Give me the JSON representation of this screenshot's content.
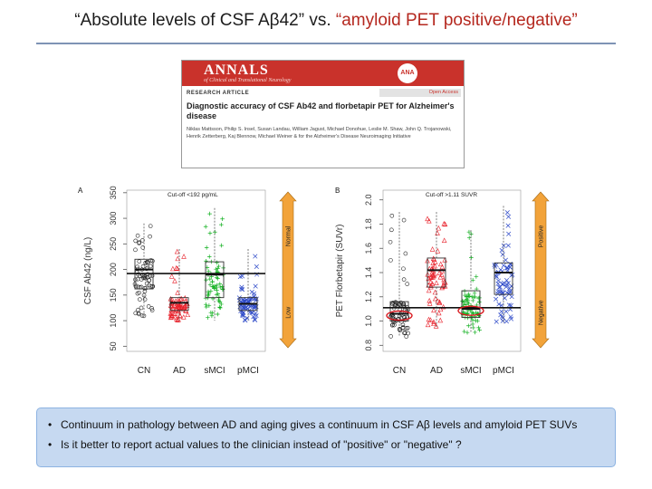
{
  "slide": {
    "title_part1": "“Absolute levels of CSF Aβ42” vs. ",
    "title_part2": "“amyloid PET positive/negative”",
    "bullets": [
      "Continuum in pathology between AD and aging gives a continuum in CSF Aβ levels and amyloid PET SUVs",
      "Is it better to report actual values to the clinician instead of \"positive\" or \"negative\" ?"
    ],
    "accent_color": "#b5281f",
    "bullet_box_color": "#c6d9f1"
  },
  "paper": {
    "journal": "ANNALS",
    "journal_sub": "of Clinical and Translational Neurology",
    "logo": "ANA",
    "open_access": "Open Access",
    "article_type": "RESEARCH ARTICLE",
    "title": "Diagnostic accuracy of CSF Ab42 and florbetapir PET for Alzheimer's disease",
    "authors": "Niklas Mattsson, Philip S. Insel, Susan Landau, William Jagust, Michael Donohue, Leslie M. Shaw, John Q. Trojanowski, Henrik Zetterberg, Kaj Blennow, Michael Weiner & for the Alzheimer's Disease Neuroimaging Initiative"
  },
  "chart_data": [
    {
      "panel": "A",
      "type": "scatter",
      "title": "Cut-off <192 pg/mL",
      "ylabel": "CSF Ab42 (ng/L)",
      "categories": [
        "CN",
        "AD",
        "sMCI",
        "pMCI"
      ],
      "ylim": [
        40,
        355
      ],
      "yticks": [
        50,
        100,
        150,
        200,
        250,
        300,
        350
      ],
      "cutoff": 192,
      "groups": [
        {
          "name": "CN",
          "marker": "circle",
          "color": "#222222",
          "median": 200,
          "q1": 162,
          "q3": 220,
          "min": 105,
          "max": 290
        },
        {
          "name": "AD",
          "marker": "triangle",
          "color": "#e8202a",
          "median": 135,
          "q1": 120,
          "q3": 145,
          "min": 100,
          "max": 240
        },
        {
          "name": "sMCI",
          "marker": "plus",
          "color": "#12b020",
          "median": 190,
          "q1": 145,
          "q3": 215,
          "min": 100,
          "max": 320
        },
        {
          "name": "pMCI",
          "marker": "cross",
          "color": "#2d49c8",
          "median": 133,
          "q1": 120,
          "q3": 145,
          "min": 100,
          "max": 240
        }
      ],
      "side_arrow": {
        "top_label": "Normal",
        "bottom_label": "Low"
      }
    },
    {
      "panel": "B",
      "type": "scatter",
      "title": "Cut-off >1.11 SUVR",
      "ylabel": "PET Florbetapir (SUVr)",
      "categories": [
        "CN",
        "AD",
        "sMCI",
        "pMCI"
      ],
      "ylim": [
        0.75,
        2.08
      ],
      "yticks": [
        0.8,
        1.0,
        1.2,
        1.4,
        1.6,
        1.8,
        2.0
      ],
      "cutoff": 1.11,
      "groups": [
        {
          "name": "CN",
          "marker": "circle",
          "color": "#222222",
          "median": 1.06,
          "q1": 1.0,
          "q3": 1.16,
          "min": 0.87,
          "max": 1.9
        },
        {
          "name": "AD",
          "marker": "triangle",
          "color": "#e8202a",
          "median": 1.42,
          "q1": 1.28,
          "q3": 1.52,
          "min": 0.95,
          "max": 1.9
        },
        {
          "name": "sMCI",
          "marker": "plus",
          "color": "#12b020",
          "median": 1.1,
          "q1": 1.03,
          "q3": 1.25,
          "min": 0.9,
          "max": 1.75
        },
        {
          "name": "pMCI",
          "marker": "cross",
          "color": "#2d49c8",
          "median": 1.4,
          "q1": 1.22,
          "q3": 1.48,
          "min": 0.98,
          "max": 1.95
        }
      ],
      "side_arrow": {
        "top_label": "Positive",
        "bottom_label": "Negative"
      }
    }
  ]
}
